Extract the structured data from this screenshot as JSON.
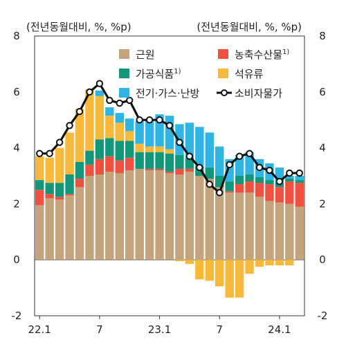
{
  "chart_data": {
    "type": "bar",
    "subtype": "stacked-bar-with-line",
    "left_unit_label": "(전년동월대비, %, %p)",
    "right_unit_label": "(전년동월대비, %, %p)",
    "ylim": [
      -2,
      8
    ],
    "yticks": [
      -2,
      0,
      2,
      4,
      6,
      8
    ],
    "y_tick_labels": [
      "-2",
      "0",
      "2",
      "4",
      "6",
      "8"
    ],
    "x_tick_labels": [
      {
        "label": "22.1",
        "index": 0
      },
      {
        "label": "7",
        "index": 6
      },
      {
        "label": "23.1",
        "index": 12
      },
      {
        "label": "7",
        "index": 18
      },
      {
        "label": "24.1",
        "index": 24
      }
    ],
    "categories": [
      "2022.01",
      "2022.02",
      "2022.03",
      "2022.04",
      "2022.05",
      "2022.06",
      "2022.07",
      "2022.08",
      "2022.09",
      "2022.10",
      "2022.11",
      "2022.12",
      "2023.01",
      "2023.02",
      "2023.03",
      "2023.04",
      "2023.05",
      "2023.06",
      "2023.07",
      "2023.08",
      "2023.09",
      "2023.10",
      "2023.11",
      "2023.12",
      "2024.01",
      "2024.02",
      "2024.03"
    ],
    "series": [
      {
        "name": "근원",
        "sup": "",
        "color": "#c4a47c",
        "values": [
          1.95,
          2.2,
          2.15,
          2.3,
          2.6,
          3.0,
          3.05,
          3.15,
          3.1,
          3.2,
          3.25,
          3.2,
          3.2,
          3.1,
          3.05,
          3.15,
          3.0,
          2.9,
          2.6,
          2.4,
          2.4,
          2.4,
          2.25,
          2.1,
          2.05,
          2.0,
          1.9
        ]
      },
      {
        "name": "농축수산물",
        "sup": "1)",
        "color": "#ef5040",
        "values": [
          0.55,
          0.15,
          0.1,
          0.05,
          0.3,
          0.4,
          0.55,
          0.55,
          0.45,
          0.45,
          0.0,
          0.05,
          0.05,
          0.05,
          0.2,
          0.1,
          0.0,
          0.0,
          0.0,
          0.05,
          0.3,
          0.4,
          0.5,
          0.6,
          0.55,
          0.8,
          0.85
        ]
      },
      {
        "name": "가공식품",
        "sup": "1)",
        "color": "#13977a",
        "values": [
          0.35,
          0.4,
          0.5,
          0.7,
          0.6,
          0.5,
          0.7,
          0.65,
          0.7,
          0.6,
          0.6,
          0.6,
          0.6,
          0.65,
          0.5,
          0.4,
          0.35,
          0.4,
          0.4,
          0.35,
          0.3,
          0.25,
          0.2,
          0.15,
          0.15,
          0.1,
          0.1
        ]
      },
      {
        "name": "석유류",
        "sup": "",
        "color": "#f8b93a",
        "values": [
          0.85,
          0.9,
          1.25,
          1.5,
          1.9,
          2.2,
          1.55,
          0.8,
          0.65,
          0.35,
          0.3,
          0.2,
          0.2,
          0.15,
          -0.05,
          -0.15,
          -0.7,
          -0.75,
          -0.95,
          -1.35,
          -1.35,
          -0.5,
          -0.25,
          -0.2,
          -0.2,
          -0.2,
          0.0
        ]
      },
      {
        "name": "전기·가스·난방",
        "sup": "",
        "color": "#30b4e4",
        "values": [
          0.0,
          0.0,
          0.0,
          0.0,
          0.0,
          0.0,
          0.2,
          0.3,
          0.35,
          0.45,
          0.8,
          0.95,
          1.15,
          1.2,
          1.1,
          1.25,
          1.4,
          1.25,
          1.05,
          0.8,
          0.75,
          0.8,
          0.65,
          0.6,
          0.55,
          0.1,
          0.15
        ]
      },
      {
        "name": "소비자물가",
        "sup": "",
        "color": "#111111",
        "line": true,
        "values": [
          3.8,
          3.8,
          4.2,
          4.8,
          5.3,
          6.0,
          6.3,
          5.7,
          5.6,
          5.7,
          5.0,
          5.0,
          5.0,
          4.8,
          4.2,
          3.7,
          3.3,
          2.7,
          2.4,
          3.4,
          3.7,
          3.8,
          3.3,
          3.2,
          2.8,
          3.1,
          3.1
        ]
      }
    ],
    "legend_order": [
      [
        "근원",
        "농축수산물"
      ],
      [
        "가공식품",
        "석유류"
      ],
      [
        "전기·가스·난방",
        "소비자물가"
      ]
    ],
    "grid": false,
    "legend_placement": "top-right"
  }
}
